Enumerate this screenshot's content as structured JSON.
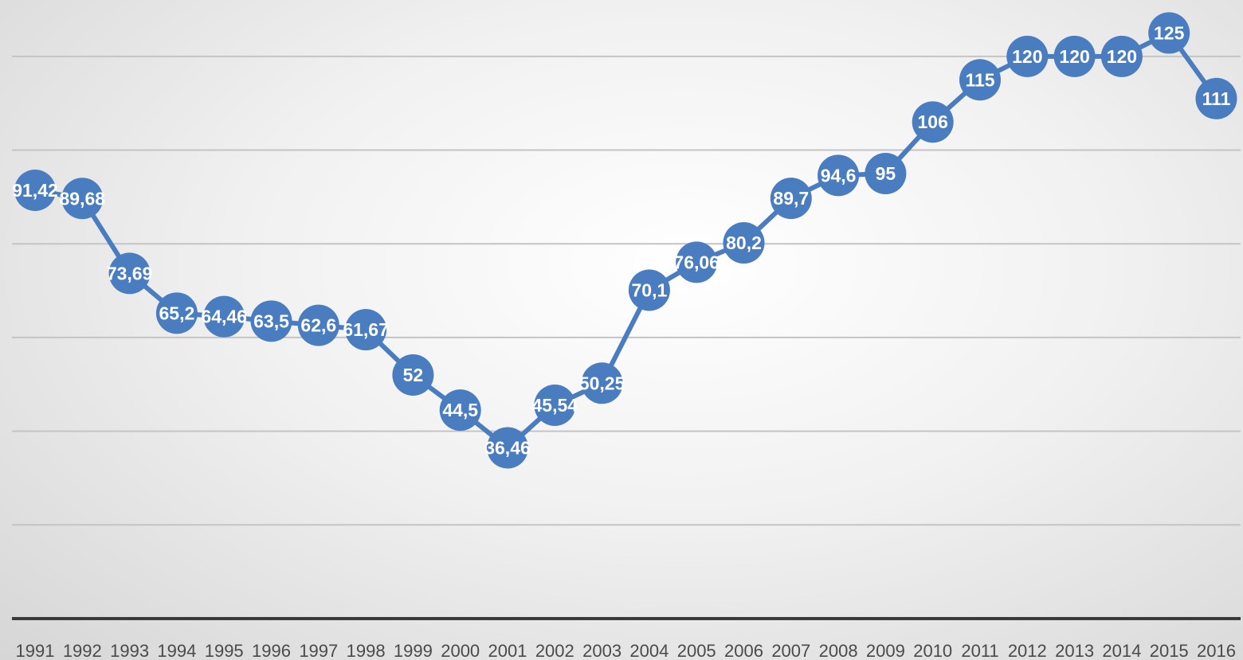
{
  "chart_data": {
    "type": "line",
    "title": "",
    "xlabel": "",
    "ylabel": "",
    "ylim": [
      0,
      130
    ],
    "grid": true,
    "legend": "none",
    "marker_color": "#4a7cc0",
    "categories": [
      "1991",
      "1992",
      "1993",
      "1994",
      "1995",
      "1996",
      "1997",
      "1998",
      "1999",
      "2000",
      "2001",
      "2002",
      "2003",
      "2004",
      "2005",
      "2006",
      "2007",
      "2008",
      "2009",
      "2010",
      "2011",
      "2012",
      "2013",
      "2014",
      "2015",
      "2016"
    ],
    "series": [
      {
        "values": [
          91.42,
          89.68,
          73.69,
          65.2,
          64.46,
          63.5,
          62.6,
          61.67,
          52,
          44.5,
          36.46,
          45.54,
          50.25,
          70.1,
          76.06,
          80.2,
          89.7,
          94.6,
          95,
          106,
          115,
          120,
          120,
          120,
          125,
          111
        ],
        "labels": [
          "91,42",
          "89,68",
          "73,69",
          "65,2",
          "64,46",
          "63,5",
          "62,6",
          "61,67",
          "52",
          "44,5",
          "36,46",
          "45,54",
          "50,25",
          "70,1",
          "76,06",
          "80,2",
          "89,7",
          "94,6",
          "95",
          "106",
          "115",
          "120",
          "120",
          "120",
          "125",
          "111"
        ]
      }
    ]
  }
}
